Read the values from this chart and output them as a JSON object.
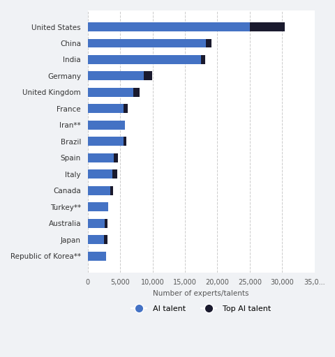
{
  "countries": [
    "United States",
    "China",
    "India",
    "Germany",
    "United Kingdom",
    "France",
    "Iran**",
    "Brazil",
    "Spain",
    "Italy",
    "Canada",
    "Turkey**",
    "Australia",
    "Japan",
    "Republic of Korea**"
  ],
  "ai_talent": [
    25000,
    18200,
    17500,
    8700,
    7000,
    5500,
    5700,
    5500,
    4000,
    3800,
    3500,
    3200,
    2600,
    2500,
    2800
  ],
  "top_ai_talent": [
    5400,
    900,
    600,
    1200,
    1000,
    700,
    0,
    400,
    700,
    700,
    400,
    0,
    400,
    500,
    0
  ],
  "ai_talent_color": "#4472C4",
  "top_ai_talent_color": "#1a1a2e",
  "background_color": "#f0f2f5",
  "bar_background_color": "#ffffff",
  "xlabel": "Number of experts/talents",
  "xlim": [
    0,
    35000
  ],
  "xticks": [
    0,
    5000,
    10000,
    15000,
    20000,
    25000,
    30000,
    35000
  ],
  "xtick_labels": [
    "0",
    "5,000",
    "10,000",
    "15,000",
    "20,000",
    "25,000",
    "30,000",
    "35,0..."
  ],
  "legend_ai_talent": "AI talent",
  "legend_top_ai_talent": "Top AI talent",
  "bar_height": 0.55
}
